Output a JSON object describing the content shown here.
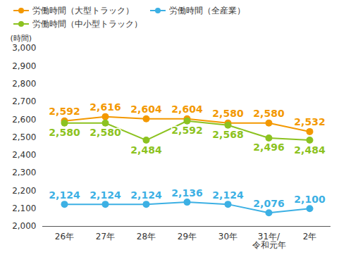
{
  "chart_data": {
    "type": "line",
    "y_label": "(時間)",
    "categories": [
      "26年",
      "27年",
      "28年",
      "29年",
      "30年",
      "31年/令和元年",
      "2年"
    ],
    "series": [
      {
        "name": "労働時間（大型トラック）",
        "color": "#f39800",
        "values": [
          2592,
          2616,
          2604,
          2604,
          2580,
          2580,
          2532
        ],
        "value_labels": [
          "2,592",
          "2,616",
          "2,604",
          "2,604",
          "2,580",
          "2,580",
          "2,532"
        ]
      },
      {
        "name": "労働時間（全産業）",
        "color": "#3cb0e4",
        "values": [
          2124,
          2124,
          2124,
          2136,
          2124,
          2076,
          2100
        ],
        "value_labels": [
          "2,124",
          "2,124",
          "2,124",
          "2,136",
          "2,124",
          "2,076",
          "2,100"
        ]
      },
      {
        "name": "労働時間（中小型トラック）",
        "color": "#8cc220",
        "values": [
          2580,
          2580,
          2484,
          2592,
          2568,
          2496,
          2484
        ],
        "value_labels": [
          "2,580",
          "2,580",
          "2,484",
          "2,592",
          "2,568",
          "2,496",
          "2,484"
        ]
      }
    ],
    "ylim": [
      2000,
      3000
    ],
    "yticks": [
      {
        "value": 2000,
        "label": "2,000"
      },
      {
        "value": 2100,
        "label": "2,100"
      },
      {
        "value": 2200,
        "label": "2,200"
      },
      {
        "value": 2300,
        "label": "2,300"
      },
      {
        "value": 2400,
        "label": "2,400"
      },
      {
        "value": 2500,
        "label": "2,500"
      },
      {
        "value": 2600,
        "label": "2,600"
      },
      {
        "value": 2700,
        "label": "2,700"
      },
      {
        "value": 2800,
        "label": "2,800"
      },
      {
        "value": 2900,
        "label": "2,900"
      },
      {
        "value": 3000,
        "label": "3,000"
      }
    ],
    "grid": false,
    "legend": "top",
    "data_labels": true,
    "marker": "circle",
    "line_style": "solid"
  }
}
